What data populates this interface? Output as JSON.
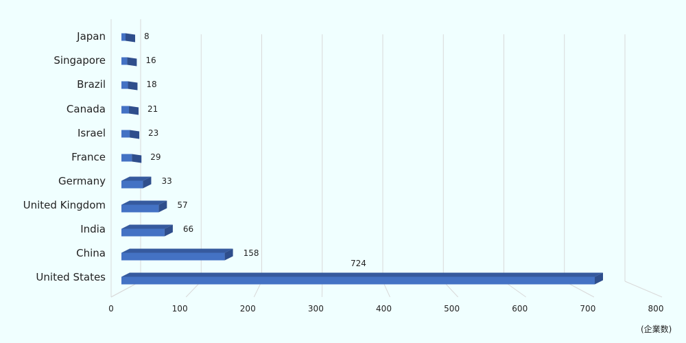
{
  "chart_data": {
    "type": "bar",
    "orientation": "horizontal",
    "style": "3d",
    "categories": [
      "Japan",
      "Singapore",
      "Brazil",
      "Canada",
      "Israel",
      "France",
      "Germany",
      "United Kingdom",
      "India",
      "China",
      "United States"
    ],
    "values": [
      8,
      16,
      18,
      21,
      23,
      29,
      33,
      57,
      66,
      158,
      724
    ],
    "title": "",
    "xlabel": "(企業数)",
    "ylabel": "",
    "xlim": [
      0,
      800
    ],
    "x_ticks": [
      "0",
      "100",
      "200",
      "300",
      "400",
      "500",
      "600",
      "700",
      "800"
    ],
    "grid": true,
    "legend": false,
    "colors": {
      "bar_front": "#4472C4",
      "bar_side": "#2F4E8C",
      "bar_top": "#365A9E",
      "grid": "#D9D9D9",
      "background": "#F0FFFF"
    }
  }
}
